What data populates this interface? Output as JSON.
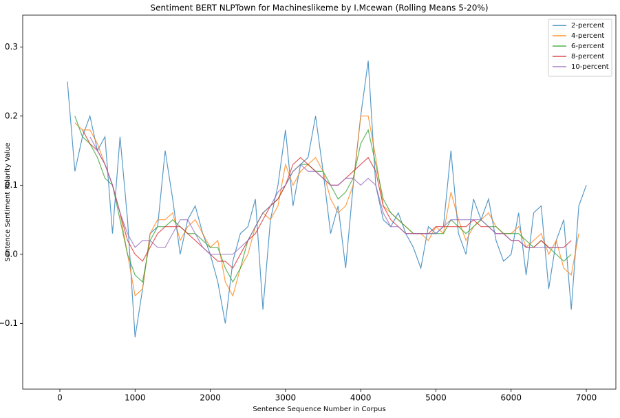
{
  "chart_data": {
    "type": "line",
    "title": "Sentiment BERT NLPTown for Machineslikeme by I.Mcewan (Rolling Means 5-20%)",
    "xlabel": "Sentence Sequence Number in Corpus",
    "ylabel": "Sentence Sentiment Polarity Value",
    "xlim": [
      -494,
      7393
    ],
    "ylim": [
      -0.195,
      0.346
    ],
    "xticks": [
      0,
      1000,
      2000,
      3000,
      4000,
      5000,
      6000,
      7000
    ],
    "yticks": [
      {
        "value": -0.1,
        "label": "−0.1"
      },
      {
        "value": 0,
        "label": "0.0"
      },
      0.1,
      0.2,
      0.3
    ],
    "legend": "upper right",
    "x": [
      100,
      200,
      300,
      400,
      500,
      600,
      700,
      800,
      900,
      1000,
      1100,
      1200,
      1300,
      1400,
      1500,
      1600,
      1700,
      1800,
      1900,
      2000,
      2100,
      2200,
      2300,
      2400,
      2500,
      2600,
      2700,
      2800,
      2900,
      3000,
      3100,
      3200,
      3300,
      3400,
      3500,
      3600,
      3700,
      3800,
      3900,
      4000,
      4100,
      4200,
      4300,
      4400,
      4500,
      4600,
      4700,
      4800,
      4900,
      5000,
      5100,
      5200,
      5300,
      5400,
      5500,
      5600,
      5700,
      5800,
      5900,
      6000,
      6100,
      6200,
      6300,
      6400,
      6500,
      6600,
      6700,
      6800,
      6900,
      7000
    ],
    "series": [
      {
        "name": "2-percent",
        "color": "#1f77b4",
        "values": [
          0.25,
          0.12,
          0.17,
          0.2,
          0.15,
          0.17,
          0.03,
          0.17,
          0.05,
          -0.12,
          -0.05,
          0.03,
          0.04,
          0.15,
          0.08,
          0.0,
          0.05,
          0.07,
          0.03,
          0.0,
          -0.04,
          -0.1,
          -0.01,
          0.03,
          0.04,
          0.08,
          -0.08,
          0.05,
          0.1,
          0.18,
          0.07,
          0.13,
          0.14,
          0.2,
          0.12,
          0.03,
          0.07,
          -0.02,
          0.1,
          0.2,
          0.28,
          0.1,
          0.05,
          0.04,
          0.06,
          0.03,
          0.01,
          -0.02,
          0.04,
          0.03,
          0.04,
          0.15,
          0.03,
          0.0,
          0.08,
          0.05,
          0.08,
          0.02,
          -0.01,
          0.0,
          0.06,
          -0.03,
          0.06,
          0.07,
          -0.05,
          0.02,
          0.05,
          -0.08,
          0.07,
          0.1
        ]
      },
      {
        "name": "4-percent",
        "color": "#ff7f0e",
        "values": [
          null,
          0.19,
          0.18,
          0.18,
          0.16,
          0.13,
          0.1,
          0.06,
          0.0,
          -0.06,
          -0.05,
          0.03,
          0.05,
          0.05,
          0.06,
          0.02,
          0.04,
          0.05,
          0.03,
          0.01,
          0.02,
          -0.04,
          -0.06,
          -0.02,
          0.0,
          0.04,
          0.06,
          0.05,
          0.07,
          0.13,
          0.1,
          0.12,
          0.13,
          0.14,
          0.12,
          0.08,
          0.06,
          0.07,
          0.1,
          0.2,
          0.2,
          0.14,
          0.07,
          0.06,
          0.05,
          0.04,
          0.03,
          0.03,
          0.02,
          0.04,
          0.03,
          0.09,
          0.05,
          0.02,
          0.04,
          0.05,
          0.06,
          0.04,
          0.03,
          0.03,
          0.04,
          0.01,
          0.02,
          0.03,
          0.0,
          0.02,
          -0.02,
          -0.03,
          0.03,
          null
        ]
      },
      {
        "name": "6-percent",
        "color": "#2ca02c",
        "values": [
          null,
          0.2,
          0.17,
          0.16,
          0.14,
          0.11,
          0.1,
          0.05,
          0.0,
          -0.03,
          -0.04,
          0.02,
          0.04,
          0.04,
          0.05,
          0.04,
          0.03,
          0.03,
          0.02,
          0.01,
          0.01,
          -0.02,
          -0.04,
          -0.02,
          0.02,
          0.04,
          0.06,
          0.07,
          0.08,
          0.1,
          0.12,
          0.13,
          0.13,
          0.12,
          0.12,
          0.1,
          0.08,
          0.09,
          0.11,
          0.16,
          0.18,
          0.13,
          0.08,
          0.06,
          0.05,
          0.04,
          0.03,
          0.03,
          0.03,
          0.03,
          0.03,
          0.05,
          0.04,
          0.03,
          0.04,
          0.05,
          0.04,
          0.04,
          0.03,
          0.03,
          0.03,
          0.02,
          0.01,
          0.02,
          0.01,
          0.0,
          -0.01,
          0.0,
          null,
          null
        ]
      },
      {
        "name": "8-percent",
        "color": "#d62728",
        "values": [
          null,
          null,
          0.18,
          0.16,
          0.15,
          0.13,
          0.1,
          0.06,
          0.02,
          0.0,
          -0.01,
          0.01,
          0.03,
          0.04,
          0.04,
          0.04,
          0.03,
          0.02,
          0.01,
          0.0,
          -0.01,
          -0.01,
          -0.02,
          0.0,
          0.02,
          0.03,
          0.05,
          0.07,
          0.08,
          0.1,
          0.13,
          0.14,
          0.13,
          0.12,
          0.11,
          0.1,
          0.1,
          0.11,
          0.12,
          0.13,
          0.14,
          0.12,
          0.07,
          0.05,
          0.04,
          0.03,
          0.03,
          0.03,
          0.03,
          0.04,
          0.04,
          0.04,
          0.04,
          0.04,
          0.05,
          0.04,
          0.04,
          0.03,
          0.03,
          0.02,
          0.02,
          0.01,
          0.01,
          0.02,
          0.01,
          0.01,
          0.01,
          0.02,
          null,
          null
        ]
      },
      {
        "name": "10-percent",
        "color": "#9467bd",
        "values": [
          null,
          null,
          null,
          0.17,
          0.15,
          0.13,
          0.1,
          0.06,
          0.03,
          0.01,
          0.02,
          0.02,
          0.01,
          0.01,
          0.03,
          0.05,
          0.05,
          0.03,
          0.01,
          0.0,
          0.0,
          0.0,
          0.0,
          0.01,
          0.02,
          0.04,
          0.06,
          0.07,
          0.09,
          0.1,
          0.12,
          0.13,
          0.12,
          0.12,
          0.11,
          0.1,
          0.1,
          0.11,
          0.11,
          0.1,
          0.11,
          0.1,
          0.06,
          0.04,
          0.04,
          0.03,
          0.03,
          0.03,
          0.03,
          0.03,
          0.04,
          0.05,
          0.05,
          0.05,
          0.05,
          0.05,
          0.04,
          0.03,
          0.03,
          0.02,
          0.02,
          0.01,
          0.01,
          0.01,
          0.01,
          0.01,
          0.01,
          null,
          null,
          null
        ]
      }
    ]
  }
}
